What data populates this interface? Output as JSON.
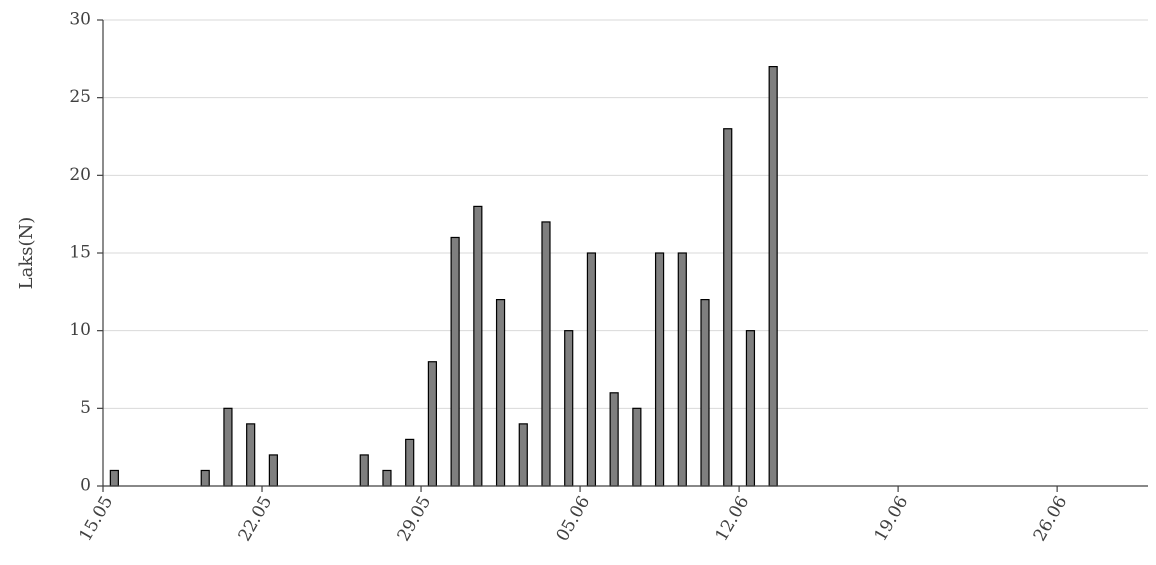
{
  "chart_data": {
    "type": "bar",
    "title": "",
    "xlabel": "",
    "ylabel": "Laks(N)",
    "ylim": [
      0,
      30
    ],
    "yticks": [
      0,
      5,
      10,
      15,
      20,
      25,
      30
    ],
    "grid": true,
    "legend": "none",
    "bar_color": "#7f7f7f",
    "bar_edge_color": "#000000",
    "x_start": "15.05",
    "x_end": "30.06",
    "x_tick_labels": [
      "15.05",
      "22.05",
      "29.05",
      "05.06",
      "12.06",
      "19.06",
      "26.06"
    ],
    "x_tick_dates": [
      "15.05",
      "22.05",
      "29.05",
      "05.06",
      "12.06",
      "19.06",
      "26.06"
    ],
    "x": [
      "15.05",
      "19.05",
      "20.05",
      "21.05",
      "22.05",
      "26.05",
      "27.05",
      "28.05",
      "29.05",
      "30.05",
      "31.05",
      "01.06",
      "02.06",
      "03.06",
      "04.06",
      "05.06",
      "06.06",
      "07.06",
      "08.06",
      "09.06",
      "10.06",
      "11.06",
      "12.06",
      "13.06"
    ],
    "values": [
      1,
      1,
      5,
      4,
      2,
      2,
      1,
      3,
      8,
      16,
      18,
      12,
      4,
      17,
      10,
      15,
      6,
      5,
      15,
      15,
      12,
      23,
      10,
      27
    ]
  }
}
